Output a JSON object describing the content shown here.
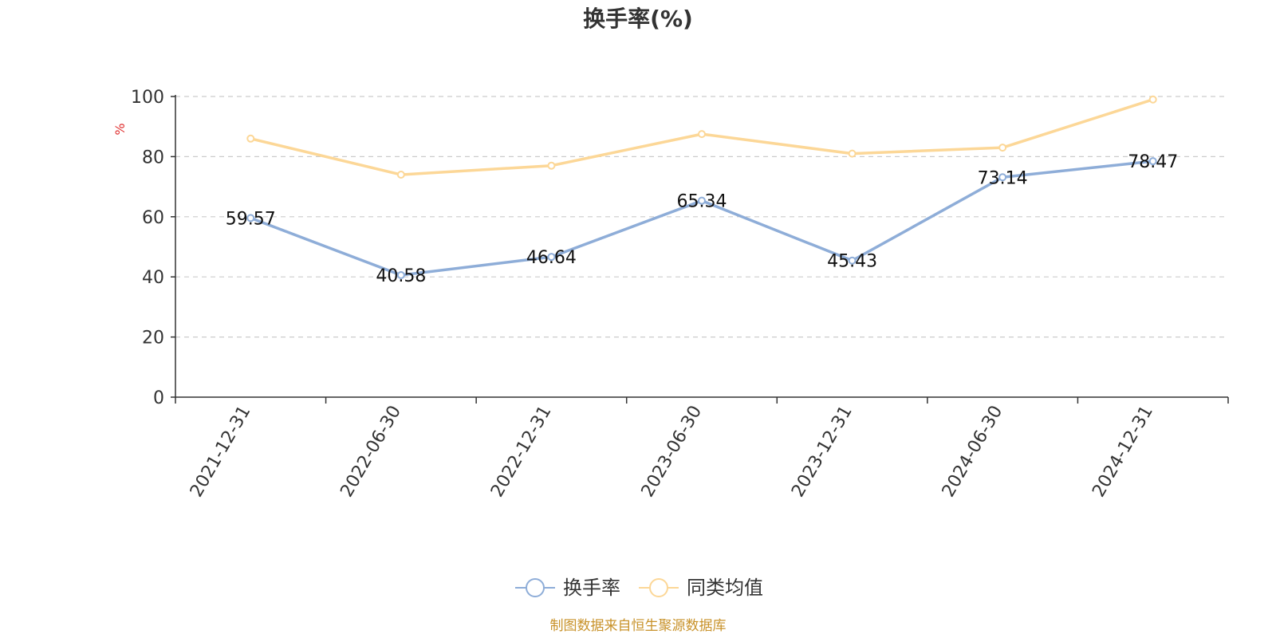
{
  "chart_data": {
    "type": "line",
    "title": "换手率(%)",
    "ylabel": "%",
    "xlabel": "",
    "ylim": [
      0,
      100
    ],
    "yticks": [
      0,
      20,
      40,
      60,
      80,
      100
    ],
    "grid": true,
    "categories": [
      "2021-12-31",
      "2022-06-30",
      "2022-12-31",
      "2023-06-30",
      "2023-12-31",
      "2024-06-30",
      "2024-12-31"
    ],
    "series": [
      {
        "name": "换手率",
        "color": "#8eadd8",
        "values": [
          59.57,
          40.58,
          46.64,
          65.34,
          45.43,
          73.14,
          78.47
        ],
        "labels": [
          "59.57",
          "40.58",
          "46.64",
          "65.34",
          "45.43",
          "73.14",
          "78.47"
        ]
      },
      {
        "name": "同类均值",
        "color": "#fcd797",
        "values": [
          86.0,
          74.0,
          77.0,
          87.5,
          81.0,
          83.0,
          99.0
        ]
      }
    ],
    "legend_position": "bottom-center",
    "source": "制图数据来自恒生聚源数据库"
  }
}
